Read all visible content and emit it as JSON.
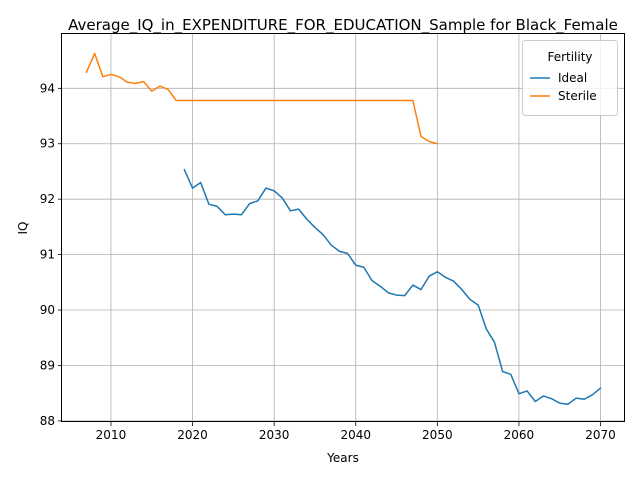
{
  "chart_data": {
    "type": "line",
    "title": "Average_IQ_in_EXPENDITURE_FOR_EDUCATION_Sample for Black_Female",
    "xlabel": "Years",
    "ylabel": "IQ",
    "xlim": [
      2004,
      2073
    ],
    "ylim": [
      87.98,
      94.98
    ],
    "xticks": [
      2010,
      2020,
      2030,
      2040,
      2050,
      2060,
      2070
    ],
    "yticks": [
      88,
      89,
      90,
      91,
      92,
      93,
      94
    ],
    "grid": true,
    "legend": {
      "title": "Fertility",
      "position": "top-right"
    },
    "series": [
      {
        "name": "Ideal",
        "color": "#1f77b4",
        "x": [
          2019,
          2020,
          2021,
          2022,
          2023,
          2024,
          2025,
          2026,
          2027,
          2028,
          2029,
          2030,
          2031,
          2032,
          2033,
          2034,
          2035,
          2036,
          2037,
          2038,
          2039,
          2040,
          2041,
          2042,
          2043,
          2044,
          2045,
          2046,
          2047,
          2048,
          2049,
          2050,
          2051,
          2052,
          2053,
          2054,
          2055,
          2056,
          2057,
          2058,
          2059,
          2060,
          2061,
          2062,
          2063,
          2064,
          2065,
          2066,
          2067,
          2068,
          2069,
          2070
        ],
        "y": [
          92.53,
          92.2,
          92.3,
          91.91,
          91.87,
          91.72,
          91.73,
          91.72,
          91.92,
          91.97,
          92.2,
          92.15,
          92.02,
          91.79,
          91.82,
          91.64,
          91.49,
          91.36,
          91.17,
          91.06,
          91.02,
          90.81,
          90.77,
          90.53,
          90.43,
          90.31,
          90.27,
          90.26,
          90.45,
          90.37,
          90.61,
          90.69,
          90.59,
          90.52,
          90.37,
          90.19,
          90.09,
          89.66,
          89.42,
          88.89,
          88.84,
          88.49,
          88.54,
          88.35,
          88.45,
          88.4,
          88.32,
          88.3,
          88.41,
          88.39,
          88.47,
          88.59
        ]
      },
      {
        "name": "Sterile",
        "color": "#ff7f0e",
        "x": [
          2007,
          2008,
          2009,
          2010,
          2011,
          2012,
          2013,
          2014,
          2015,
          2016,
          2017,
          2018,
          2019,
          2020,
          2021,
          2022,
          2023,
          2024,
          2025,
          2026,
          2027,
          2028,
          2029,
          2030,
          2031,
          2032,
          2033,
          2034,
          2035,
          2036,
          2037,
          2038,
          2039,
          2040,
          2041,
          2042,
          2043,
          2044,
          2045,
          2046,
          2047,
          2048,
          2049,
          2050
        ],
        "y": [
          94.29,
          94.63,
          94.21,
          94.25,
          94.21,
          94.11,
          94.09,
          94.12,
          93.95,
          94.04,
          93.98,
          93.78,
          93.78,
          93.78,
          93.78,
          93.78,
          93.78,
          93.78,
          93.78,
          93.78,
          93.78,
          93.78,
          93.78,
          93.78,
          93.78,
          93.78,
          93.78,
          93.78,
          93.78,
          93.78,
          93.78,
          93.78,
          93.78,
          93.78,
          93.78,
          93.78,
          93.78,
          93.78,
          93.78,
          93.78,
          93.78,
          93.13,
          93.04,
          93.0
        ]
      }
    ]
  }
}
